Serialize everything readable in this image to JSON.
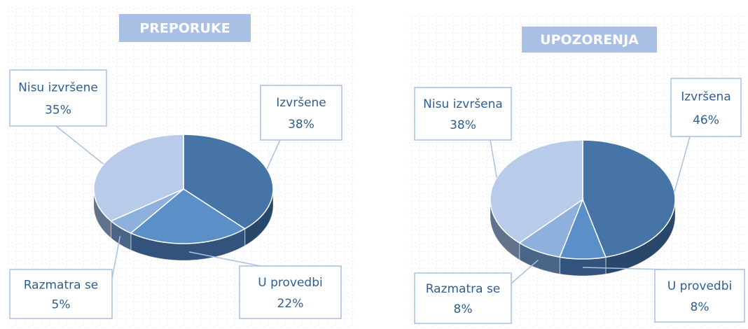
{
  "chart_data": [
    {
      "type": "pie",
      "title": "PREPORUKE",
      "categories": [
        "Izvršene",
        "U provedbi",
        "Razmatra se",
        "Nisu izvršene"
      ],
      "values": [
        38,
        22,
        5,
        35
      ],
      "value_labels": [
        "38%",
        "22%",
        "5%",
        "35%"
      ],
      "colors": [
        "#4674a6",
        "#5b8fc8",
        "#8db0dc",
        "#b8cbe8"
      ]
    },
    {
      "type": "pie",
      "title": "UPOZORENJA",
      "categories": [
        "Izvršena",
        "U provedbi",
        "Razmatra se",
        "Nisu izvršena"
      ],
      "values": [
        46,
        8,
        8,
        38
      ],
      "value_labels": [
        "46%",
        "8%",
        "8%",
        "38%"
      ],
      "colors": [
        "#4674a6",
        "#5b8fc8",
        "#8db0dc",
        "#b8cbe8"
      ]
    }
  ]
}
